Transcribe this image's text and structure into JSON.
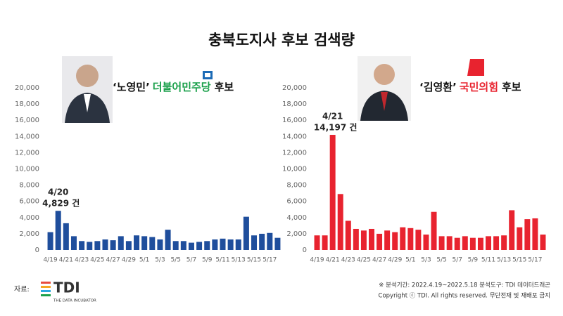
{
  "header": {
    "title": "충북도지사 후보 검색량"
  },
  "chart_data": [
    {
      "type": "bar",
      "name": "‘노영민’",
      "party": "더불어민주당",
      "suffix": "후보",
      "party_color": "#1aa04a",
      "color": "#1f4e9c",
      "categories": [
        "4/19",
        null,
        "4/21",
        null,
        "4/23",
        null,
        "4/25",
        null,
        "4/27",
        null,
        "4/29",
        null,
        "5/1",
        null,
        "5/3",
        null,
        "5/5",
        null,
        "5/7",
        null,
        "5/9",
        null,
        "5/11",
        null,
        "5/13",
        null,
        "5/15",
        null,
        "5/17",
        null
      ],
      "values": [
        2200,
        4829,
        3300,
        1700,
        1100,
        1000,
        1100,
        1300,
        1200,
        1700,
        1100,
        1800,
        1700,
        1600,
        1300,
        2500,
        1100,
        1100,
        900,
        1000,
        1100,
        1300,
        1400,
        1300,
        1300,
        4100,
        1800,
        2000,
        2100,
        1500
      ],
      "value_labels": [
        null,
        "4,829 건",
        null,
        null,
        null,
        null,
        null,
        null,
        null,
        null,
        null,
        null,
        null,
        null,
        null,
        null,
        null,
        null,
        null,
        null,
        null,
        null,
        null,
        null,
        null,
        null,
        null,
        null,
        null,
        null
      ],
      "label_dates": [
        null,
        "4/20",
        null,
        null,
        null,
        null,
        null,
        null,
        null,
        null,
        null,
        null,
        null,
        null,
        null,
        null,
        null,
        null,
        null,
        null,
        null,
        null,
        null,
        null,
        null,
        null,
        null,
        null,
        null,
        null
      ],
      "ylim": [
        0,
        20000
      ],
      "yticks": [
        0,
        {
          "value": 2000,
          "label": "2,000"
        },
        {
          "value": 4000,
          "label": "4,000"
        },
        {
          "value": 6000,
          "label": "6,000"
        },
        {
          "value": 8000,
          "label": "8,000"
        },
        {
          "value": 10000,
          "label": "10,000"
        },
        {
          "value": 12000,
          "label": "12,000"
        },
        {
          "value": 14000,
          "label": "14,000"
        },
        {
          "value": 16000,
          "label": "16,000"
        },
        {
          "value": 18000,
          "label": "18,000"
        },
        {
          "value": 20000,
          "label": "20,000"
        }
      ],
      "grid": false
    },
    {
      "type": "bar",
      "name": "‘김영환’",
      "party": "국민의힘",
      "suffix": "후보",
      "party_color": "#e8232f",
      "color": "#e8232f",
      "categories": [
        "4/19",
        null,
        "4/21",
        null,
        "4/23",
        null,
        "4/25",
        null,
        "4/27",
        null,
        "4/29",
        null,
        "5/1",
        null,
        "5/3",
        null,
        "5/5",
        null,
        "5/7",
        null,
        "5/9",
        null,
        "5/11",
        null,
        "5/13",
        null,
        "5/15",
        null,
        "5/17",
        null
      ],
      "values": [
        1800,
        1800,
        14197,
        6900,
        3600,
        2600,
        2400,
        2600,
        2000,
        2400,
        2200,
        2800,
        2700,
        2500,
        1900,
        4700,
        1700,
        1700,
        1500,
        1700,
        1500,
        1500,
        1700,
        1700,
        1800,
        4900,
        2800,
        3800,
        3900,
        1900
      ],
      "value_labels": [
        null,
        null,
        "14,197 건",
        null,
        null,
        null,
        null,
        null,
        null,
        null,
        null,
        null,
        null,
        null,
        null,
        null,
        null,
        null,
        null,
        null,
        null,
        null,
        null,
        null,
        null,
        null,
        null,
        null,
        null,
        null
      ],
      "label_dates": [
        null,
        null,
        "4/21",
        null,
        null,
        null,
        null,
        null,
        null,
        null,
        null,
        null,
        null,
        null,
        null,
        null,
        null,
        null,
        null,
        null,
        null,
        null,
        null,
        null,
        null,
        null,
        null,
        null,
        null,
        null
      ],
      "ylim": [
        0,
        20000
      ],
      "yticks": [
        0,
        {
          "value": 2000,
          "label": "2,000"
        },
        {
          "value": 4000,
          "label": "4,000"
        },
        {
          "value": 6000,
          "label": "6,000"
        },
        {
          "value": 8000,
          "label": "8,000"
        },
        {
          "value": 10000,
          "label": "10,000"
        },
        {
          "value": 12000,
          "label": "12,000"
        },
        {
          "value": 14000,
          "label": "14,000"
        },
        {
          "value": 16000,
          "label": "16,000"
        },
        {
          "value": 18000,
          "label": "18,000"
        },
        {
          "value": 20000,
          "label": "20,000"
        }
      ],
      "grid": false
    }
  ],
  "footer": {
    "source_label": "자료:",
    "logo": "TDI",
    "logo_sub": "THE DATA INCUBATOR",
    "note": "※ 분석기간: 2022.4.19~2022.5.18 분석도구: TDI 데이터드래곤",
    "copyright": "Copyright ⓒ TDI. All rights reserved. 무단전재 및 재배포 금지"
  }
}
